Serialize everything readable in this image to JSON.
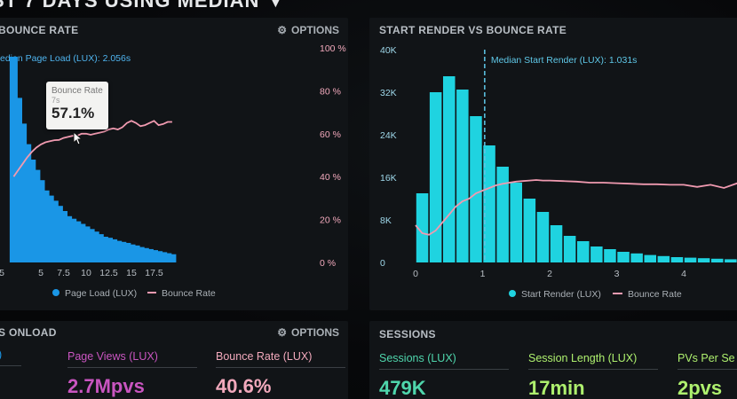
{
  "header": {
    "title": "ST 7 DAYS USING MEDIAN ▼"
  },
  "colors": {
    "bar": "#1a96e6",
    "bar2": "#1fd3e0",
    "line": "#f09ab0",
    "pv": "#c955c0",
    "bounce": "#f2a9bc",
    "sessions": "#4fd6ac",
    "green": "#aef06e"
  },
  "panel_left": {
    "title": "BOUNCE RATE",
    "options": "OPTIONS",
    "median_label": "edian Page Load (LUX): 2.056s",
    "tooltip": {
      "label": "Bounce Rate",
      "time": "7s",
      "value": "57.1%"
    },
    "legend": {
      "bars": "Page Load (LUX)",
      "line": "Bounce Rate"
    }
  },
  "panel_right": {
    "title": "START RENDER VS BOUNCE RATE",
    "median_label": "Median Start Render (LUX): 1.031s",
    "legend": {
      "bars": "Start Render (LUX)",
      "line": "Bounce Rate"
    }
  },
  "panel_bottom_left": {
    "title": "S ONLOAD",
    "options": "OPTIONS",
    "metrics": [
      {
        "label": "Page Views (LUX)",
        "value": "2.7Mpvs"
      },
      {
        "label": "Bounce Rate (LUX)",
        "value": "40.6%"
      }
    ]
  },
  "panel_bottom_right": {
    "title": "SESSIONS",
    "metrics": [
      {
        "label": "Sessions (LUX)",
        "value": "479K"
      },
      {
        "label": "Session Length (LUX)",
        "value": "17min"
      },
      {
        "label": "PVs Per Se",
        "value": "2pvs"
      }
    ]
  },
  "chart_data": [
    {
      "type": "bar",
      "title": "BOUNCE RATE",
      "x_ticks": [
        "5",
        "5",
        "7.5",
        "10",
        "12.5",
        "15",
        "17.5"
      ],
      "y2_ticks": [
        "100 %",
        "80 %",
        "60 %",
        "40 %",
        "20 %",
        "0 %"
      ],
      "y2lim": [
        0,
        100
      ],
      "series": [
        {
          "name": "Page Load (LUX)",
          "type": "bar",
          "x": [
            2.0,
            2.5,
            3.0,
            3.5,
            4.0,
            4.5,
            5.0,
            5.5,
            6.0,
            6.5,
            7.0,
            7.5,
            8.0,
            8.5,
            9.0,
            9.5,
            10.0,
            10.5,
            11.0,
            11.5,
            12.0,
            12.5,
            13.0,
            13.5,
            14.0,
            14.5,
            15.0,
            15.5,
            16.0,
            16.5,
            17.0,
            17.5,
            18.0,
            18.5,
            19.0,
            19.5
          ],
          "values": [
            40,
            32,
            27,
            23,
            20,
            18,
            16,
            14,
            13,
            12,
            11,
            10,
            9,
            8.5,
            8,
            7.5,
            7,
            6.5,
            6,
            5.5,
            5,
            4.8,
            4.5,
            4.2,
            4,
            3.8,
            3.5,
            3.3,
            3,
            2.8,
            2.6,
            2.4,
            2.2,
            2,
            1.8,
            1.6
          ]
        },
        {
          "name": "Bounce Rate",
          "type": "line",
          "x": [
            2.0,
            2.5,
            3.0,
            3.5,
            4.0,
            4.5,
            5.0,
            5.5,
            6.0,
            6.5,
            7.0,
            7.5,
            8.0,
            8.5,
            9.0,
            9.5,
            10.0,
            10.5,
            11.0,
            11.5,
            12.0,
            12.5,
            13.0,
            13.5,
            14.0,
            14.5,
            15.0,
            15.5,
            16.0,
            16.5,
            17.0,
            17.5,
            18.0,
            18.5,
            19.0,
            19.5
          ],
          "values": [
            40,
            43,
            46,
            49,
            51.5,
            53.5,
            55,
            56,
            56.5,
            57,
            57.1,
            58,
            58.5,
            59,
            59,
            60,
            60,
            59.5,
            60,
            60.5,
            61,
            62,
            62.5,
            62,
            63,
            65,
            66,
            65,
            63.5,
            64,
            65,
            66,
            64,
            64.5,
            65.5,
            65.5
          ]
        }
      ],
      "annotations": [
        "edian Page Load (LUX): 2.056s"
      ]
    },
    {
      "type": "bar",
      "title": "START RENDER VS BOUNCE RATE",
      "x_ticks": [
        "0",
        "1",
        "2",
        "3",
        "4"
      ],
      "y_ticks": [
        "0",
        "8K",
        "16K",
        "24K",
        "32K",
        "40K"
      ],
      "ylim": [
        0,
        40000
      ],
      "series": [
        {
          "name": "Start Render (LUX)",
          "type": "bar",
          "x": [
            0.1,
            0.3,
            0.5,
            0.7,
            0.9,
            1.1,
            1.3,
            1.5,
            1.7,
            1.9,
            2.1,
            2.3,
            2.5,
            2.7,
            2.9,
            3.1,
            3.3,
            3.5,
            3.7,
            3.9,
            4.1,
            4.3,
            4.5,
            4.7,
            4.9
          ],
          "values": [
            13000,
            32000,
            35000,
            32500,
            27500,
            22000,
            18000,
            15000,
            12000,
            9500,
            7000,
            5000,
            4000,
            3000,
            2500,
            2000,
            1700,
            1400,
            1200,
            1000,
            900,
            800,
            700,
            600,
            500
          ]
        },
        {
          "name": "Bounce Rate",
          "type": "line",
          "x": [
            0,
            0.1,
            0.2,
            0.3,
            0.4,
            0.5,
            0.6,
            0.7,
            0.8,
            0.9,
            1.0,
            1.1,
            1.2,
            1.3,
            1.4,
            1.5,
            1.6,
            1.7,
            1.8,
            1.9,
            2.0,
            2.2,
            2.4,
            2.6,
            2.8,
            3.0,
            3.2,
            3.4,
            3.6,
            3.8,
            4.0,
            4.2,
            4.4,
            4.6,
            4.8,
            5.0
          ],
          "values": [
            7000,
            5500,
            5200,
            6000,
            7500,
            9000,
            10500,
            11500,
            12000,
            13000,
            13500,
            14000,
            14500,
            14800,
            15000,
            15200,
            15300,
            15400,
            15500,
            15400,
            15400,
            15300,
            15200,
            15000,
            15000,
            14900,
            14800,
            14700,
            14700,
            14600,
            14600,
            14200,
            14600,
            14000,
            14900,
            13800
          ]
        }
      ],
      "annotations": [
        "Median Start Render (LUX): 1.031s"
      ]
    }
  ]
}
